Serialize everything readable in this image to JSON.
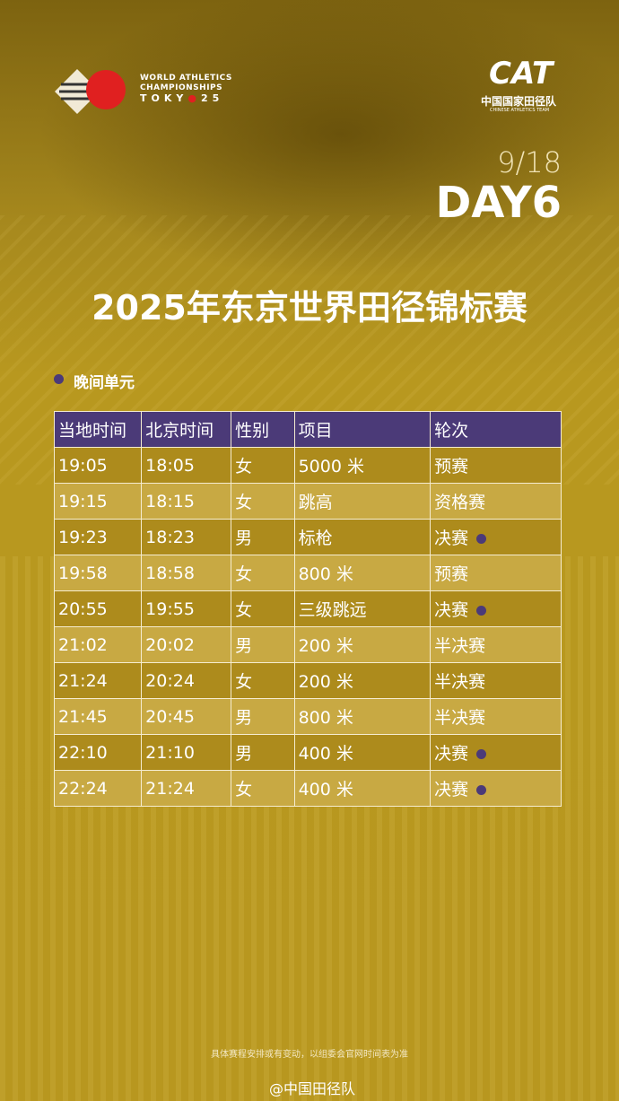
{
  "header": {
    "event_logo": [
      "WORLD ATHLETICS",
      "CHAMPIONSHIPS",
      "TOKY",
      "25"
    ],
    "team_logo": {
      "mark": "CAT",
      "name": "中国国家田径队",
      "english": "CHINESE ATHLETICS TEAM"
    },
    "date": "9/18",
    "day": "DAY6",
    "title": "2025年东京世界田径锦标赛"
  },
  "session": "晚间单元",
  "table": {
    "columns": [
      "当地时间",
      "北京时间",
      "性别",
      "项目",
      "轮次"
    ],
    "rows": [
      {
        "cells": [
          "19:05",
          "18:05",
          "女",
          "5000 米",
          "预赛"
        ],
        "dot": false
      },
      {
        "cells": [
          "19:15",
          "18:15",
          "女",
          "跳高",
          "资格赛"
        ],
        "dot": false
      },
      {
        "cells": [
          "19:23",
          "18:23",
          "男",
          "标枪",
          "决赛"
        ],
        "dot": true
      },
      {
        "cells": [
          "19:58",
          "18:58",
          "女",
          "800 米",
          "预赛"
        ],
        "dot": false
      },
      {
        "cells": [
          "20:55",
          "19:55",
          "女",
          "三级跳远",
          "决赛"
        ],
        "dot": true
      },
      {
        "cells": [
          "21:02",
          "20:02",
          "男",
          "200 米",
          "半决赛"
        ],
        "dot": false
      },
      {
        "cells": [
          "21:24",
          "20:24",
          "女",
          "200 米",
          "半决赛"
        ],
        "dot": false
      },
      {
        "cells": [
          "21:45",
          "20:45",
          "男",
          "800 米",
          "半决赛"
        ],
        "dot": false
      },
      {
        "cells": [
          "22:10",
          "21:10",
          "男",
          "400 米",
          "决赛"
        ],
        "dot": true
      },
      {
        "cells": [
          "22:24",
          "21:24",
          "女",
          "400 米",
          "决赛"
        ],
        "dot": true
      }
    ]
  },
  "footer": {
    "note": "具体赛程安排或有变动，以组委会官网时间表为准",
    "account": "@中国田径队"
  }
}
